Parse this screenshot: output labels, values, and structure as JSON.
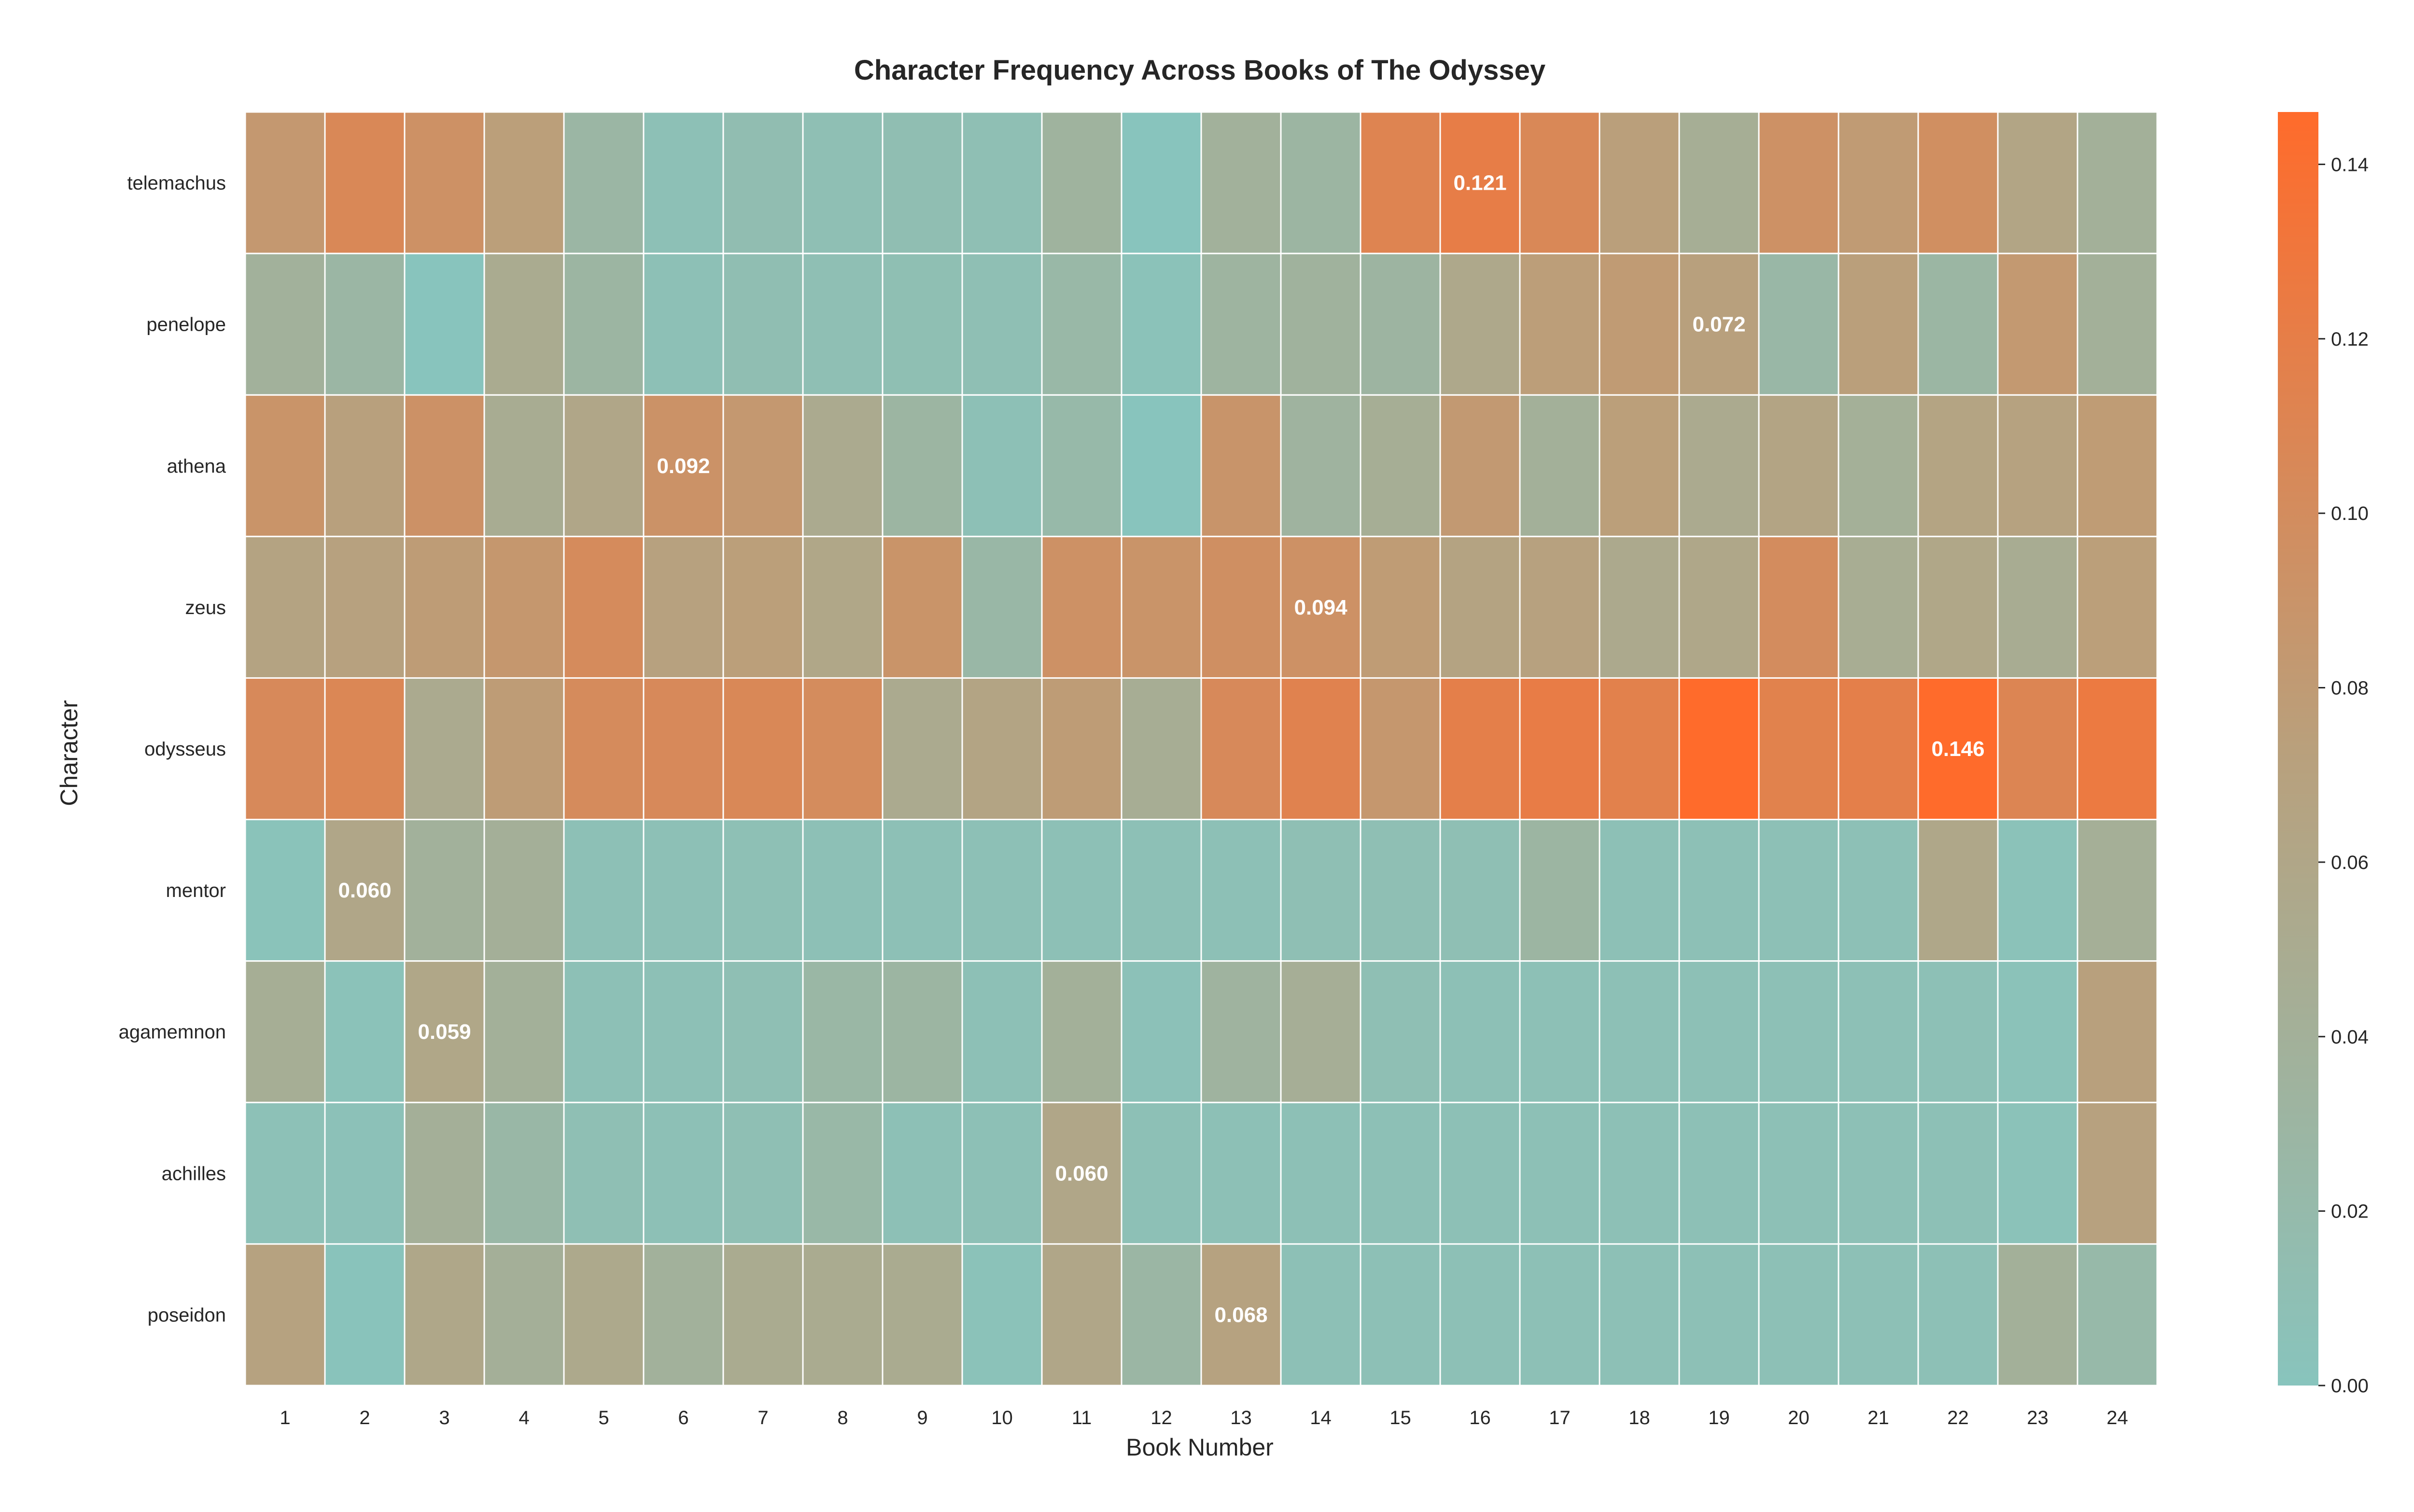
{
  "chart_data": {
    "type": "heatmap",
    "title": "Character Frequency Across Books of The Odyssey",
    "xlabel": "Book Number",
    "ylabel": "Character",
    "x": [
      "1",
      "2",
      "3",
      "4",
      "5",
      "6",
      "7",
      "8",
      "9",
      "10",
      "11",
      "12",
      "13",
      "14",
      "15",
      "16",
      "17",
      "18",
      "19",
      "20",
      "21",
      "22",
      "23",
      "24"
    ],
    "y": [
      "telemachus",
      "penelope",
      "athena",
      "zeus",
      "odysseus",
      "mentor",
      "agamemnon",
      "achilles",
      "poseidon"
    ],
    "values": [
      [
        0.084,
        0.106,
        0.094,
        0.075,
        0.028,
        0.008,
        0.014,
        0.01,
        0.012,
        0.01,
        0.035,
        0.0,
        0.038,
        0.03,
        0.112,
        0.121,
        0.106,
        0.074,
        0.045,
        0.094,
        0.08,
        0.097,
        0.063,
        0.04
      ],
      [
        0.038,
        0.028,
        0.0,
        0.05,
        0.03,
        0.008,
        0.012,
        0.01,
        0.011,
        0.01,
        0.025,
        0.005,
        0.033,
        0.036,
        0.032,
        0.056,
        0.076,
        0.08,
        0.072,
        0.026,
        0.074,
        0.029,
        0.083,
        0.04
      ],
      [
        0.09,
        0.072,
        0.093,
        0.048,
        0.06,
        0.092,
        0.084,
        0.052,
        0.03,
        0.008,
        0.022,
        0.0,
        0.089,
        0.034,
        0.045,
        0.082,
        0.04,
        0.075,
        0.052,
        0.064,
        0.041,
        0.065,
        0.069,
        0.079
      ],
      [
        0.066,
        0.07,
        0.078,
        0.086,
        0.102,
        0.07,
        0.075,
        0.059,
        0.09,
        0.026,
        0.094,
        0.09,
        0.096,
        0.094,
        0.079,
        0.066,
        0.07,
        0.054,
        0.058,
        0.1,
        0.047,
        0.059,
        0.048,
        0.075
      ],
      [
        0.104,
        0.108,
        0.052,
        0.078,
        0.102,
        0.104,
        0.106,
        0.101,
        0.052,
        0.064,
        0.078,
        0.046,
        0.104,
        0.114,
        0.086,
        0.118,
        0.122,
        0.116,
        0.146,
        0.115,
        0.118,
        0.146,
        0.11,
        0.126
      ],
      [
        0.003,
        0.06,
        0.038,
        0.042,
        0.008,
        0.008,
        0.009,
        0.008,
        0.008,
        0.008,
        0.008,
        0.008,
        0.008,
        0.01,
        0.01,
        0.01,
        0.03,
        0.008,
        0.008,
        0.008,
        0.008,
        0.058,
        0.005,
        0.043
      ],
      [
        0.045,
        0.005,
        0.059,
        0.04,
        0.008,
        0.008,
        0.01,
        0.027,
        0.03,
        0.008,
        0.04,
        0.006,
        0.034,
        0.044,
        0.01,
        0.008,
        0.008,
        0.008,
        0.008,
        0.008,
        0.008,
        0.008,
        0.004,
        0.072
      ],
      [
        0.007,
        0.006,
        0.042,
        0.026,
        0.01,
        0.008,
        0.01,
        0.025,
        0.008,
        0.008,
        0.06,
        0.008,
        0.008,
        0.008,
        0.008,
        0.008,
        0.008,
        0.008,
        0.008,
        0.008,
        0.008,
        0.008,
        0.004,
        0.07
      ],
      [
        0.068,
        0.002,
        0.058,
        0.042,
        0.055,
        0.038,
        0.05,
        0.05,
        0.05,
        0.004,
        0.06,
        0.028,
        0.068,
        0.008,
        0.008,
        0.008,
        0.008,
        0.008,
        0.008,
        0.008,
        0.008,
        0.008,
        0.04,
        0.022
      ]
    ],
    "annotations": [
      {
        "row": 0,
        "col": 15,
        "label": "0.121"
      },
      {
        "row": 1,
        "col": 18,
        "label": "0.072"
      },
      {
        "row": 2,
        "col": 5,
        "label": "0.092"
      },
      {
        "row": 3,
        "col": 13,
        "label": "0.094"
      },
      {
        "row": 4,
        "col": 21,
        "label": "0.146"
      },
      {
        "row": 5,
        "col": 1,
        "label": "0.060"
      },
      {
        "row": 6,
        "col": 2,
        "label": "0.059"
      },
      {
        "row": 7,
        "col": 10,
        "label": "0.060"
      },
      {
        "row": 8,
        "col": 12,
        "label": "0.068"
      }
    ],
    "color_range": [
      0.0,
      0.146
    ],
    "colormap": {
      "low": "#88c4bd",
      "mid": "#b9a07c",
      "high": "#ff6b2b"
    },
    "colorbar_ticks": [
      "0.00",
      "0.02",
      "0.04",
      "0.06",
      "0.08",
      "0.10",
      "0.12",
      "0.14"
    ],
    "grid": false
  }
}
